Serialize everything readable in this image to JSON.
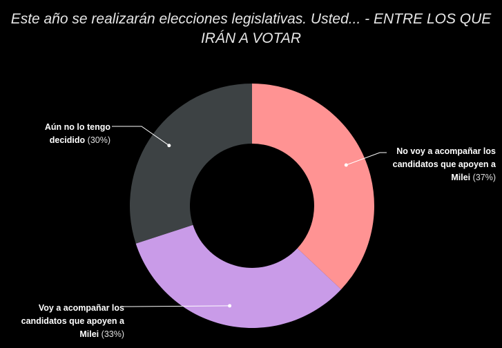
{
  "colors": {
    "background": "#000000",
    "slice_1": "#ff9393",
    "slice_2": "#c99be8",
    "slice_3": "#3d4244",
    "leader": "#ffffff"
  },
  "chart_data": {
    "type": "pie",
    "variant": "donut",
    "title": "Este año se realizarán elecciones legislativas. Usted... - ENTRE LOS QUE IRÁN A VOTAR",
    "legend": "none",
    "slices": [
      {
        "label": "No voy a acompañar los candidatos que apoyen a Milei",
        "value": 37,
        "value_label": "(37%)",
        "color": "#ff9393"
      },
      {
        "label": "Voy a acompañar los candidatos que apoyen a Milei",
        "value": 33,
        "value_label": "(33%)",
        "color": "#c99be8"
      },
      {
        "label": "Aún no lo tengo decidido",
        "value": 30,
        "value_label": "(30%)",
        "color": "#3d4244"
      }
    ]
  }
}
